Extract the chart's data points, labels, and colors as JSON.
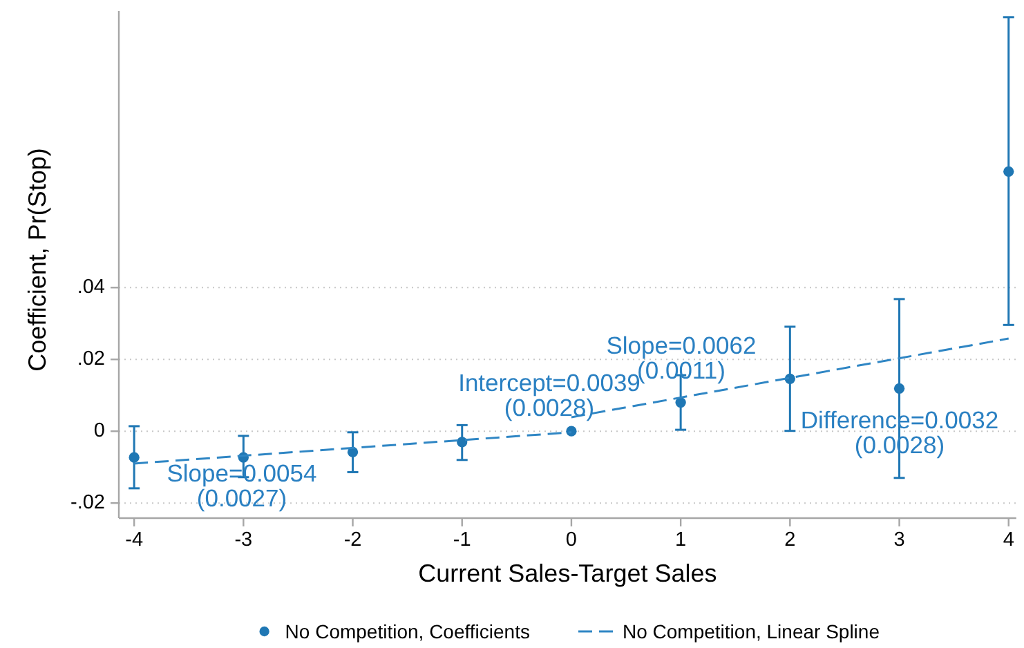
{
  "chart_data": {
    "type": "scatter",
    "xlabel": "Current Sales-Target Sales",
    "ylabel": "Coefficient, Pr(Stop)",
    "xlim": [
      -4.14,
      4.07
    ],
    "xticks": [
      -4,
      -3,
      -2,
      -1,
      0,
      1,
      2,
      3,
      4
    ],
    "ylim": [
      -0.0242,
      0.117
    ],
    "yticks": [
      {
        "value": -0.02,
        "label": "-.02"
      },
      0,
      {
        "value": 0.02,
        "label": ".02"
      },
      {
        "value": 0.04,
        "label": ".04"
      }
    ],
    "grid": "y",
    "legend": "bottom",
    "series": [
      {
        "name": "No Competition, Coefficients",
        "color": "#1f77b4",
        "marker": "circle",
        "x": [
          -4,
          -3,
          -2,
          -1,
          0,
          1,
          2,
          3,
          4
        ],
        "values": [
          -0.0073,
          -0.0073,
          -0.0058,
          -0.003,
          0,
          0.008,
          0.0146,
          0.0119,
          0.0723
        ],
        "errors": [
          [
            -0.0159,
            0.0014
          ],
          [
            -0.0128,
            -0.0013
          ],
          [
            -0.0114,
            -0.0003
          ],
          [
            -0.008,
            0.0017
          ],
          null,
          [
            0.0004,
            0.0156
          ],
          [
            0.0001,
            0.0291
          ],
          [
            -0.013,
            0.0368
          ],
          [
            0.0296,
            0.1153
          ]
        ]
      },
      {
        "name": "No Competition, Linear Spline",
        "type": "line",
        "color": "#2f86c4",
        "line_style": "dashed",
        "x": [
          -4,
          0
        ],
        "values": [
          -0.009,
          -0.0003
        ]
      },
      {
        "type": "line",
        "color": "#2f86c4",
        "line_style": "dashed",
        "x": [
          0,
          4
        ],
        "values": [
          0.0039,
          0.0258
        ]
      }
    ],
    "annotations": [
      "Slope=0.0054\n(0.0027)",
      "Intercept=0.0039\n(0.0028)",
      "Slope=0.0062\n(0.0011)",
      "Difference=0.0032\n(0.0028)"
    ]
  }
}
